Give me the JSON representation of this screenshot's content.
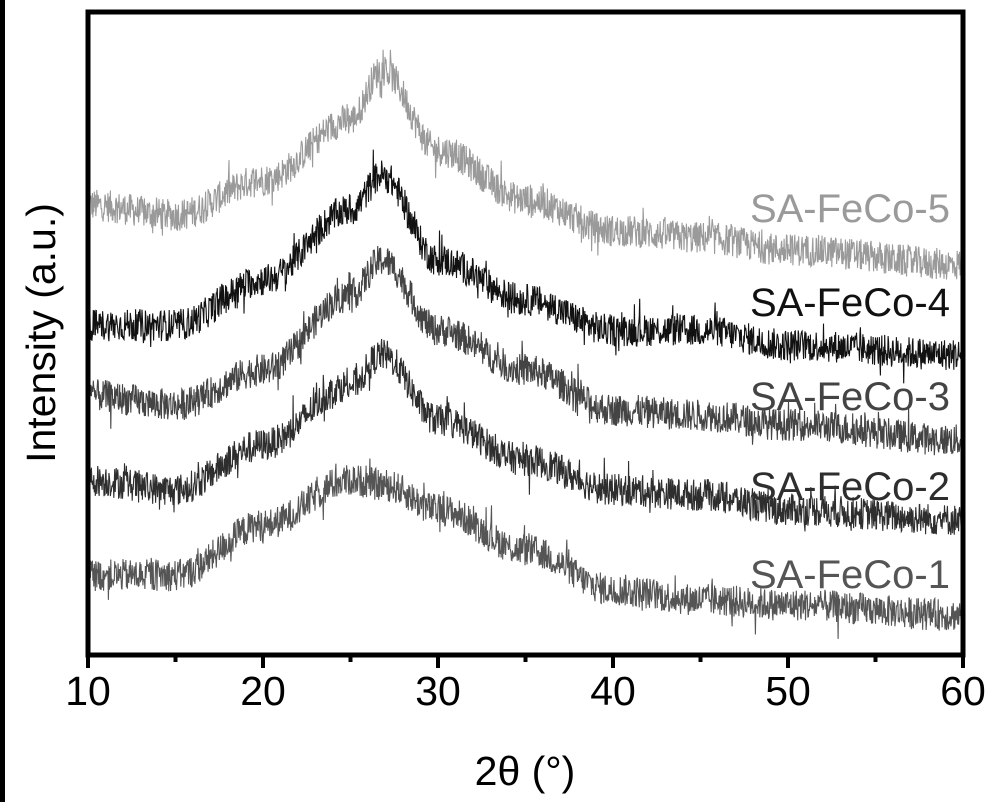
{
  "chart_data": {
    "type": "line",
    "title": "",
    "xlabel": "2θ (°)",
    "ylabel": "Intensity (a.u.)",
    "xlim": [
      10,
      60
    ],
    "ylim": [
      0,
      100
    ],
    "xticks": [
      10,
      20,
      30,
      40,
      50,
      60
    ],
    "xticks_minor": [
      15,
      25,
      35,
      45,
      55
    ],
    "grid": false,
    "legend": "inline-right",
    "noise": "high-frequency noise on all series, ~±3 a.u.",
    "series": [
      {
        "name": "SA-FeCo-5",
        "color": "#9a9a9a",
        "x": [
          10,
          15,
          20,
          25,
          26.8,
          30,
          35,
          40,
          45,
          50,
          60
        ],
        "y": [
          70,
          68.4,
          73.9,
          83.2,
          91,
          78.5,
          70.8,
          66,
          64.9,
          63,
          60.7
        ]
      },
      {
        "name": "SA-FeCo-4",
        "color": "#111111",
        "x": [
          10,
          15,
          20,
          25,
          26.8,
          30,
          35,
          40,
          45,
          50,
          60
        ],
        "y": [
          51.3,
          51.3,
          58.3,
          69.2,
          74.6,
          61.4,
          55.2,
          50.5,
          50.5,
          48.2,
          46.7
        ]
      },
      {
        "name": "SA-FeCo-3",
        "color": "#444444",
        "x": [
          10,
          15,
          20,
          25,
          26.8,
          30,
          35,
          40,
          45,
          50,
          60
        ],
        "y": [
          40.4,
          38.9,
          44.3,
          56,
          61.4,
          50.5,
          44.3,
          38.1,
          37.3,
          35.8,
          33.4
        ]
      },
      {
        "name": "SA-FeCo-2",
        "color": "#2e2e2e",
        "x": [
          10,
          15,
          20,
          25,
          26.8,
          30,
          35,
          40,
          45,
          50,
          60
        ],
        "y": [
          27.2,
          25.7,
          32.7,
          42,
          46.7,
          36.5,
          30.3,
          25.7,
          24.9,
          22.6,
          21
        ]
      },
      {
        "name": "SA-FeCo-1",
        "color": "#555555",
        "x": [
          10,
          15,
          20,
          25,
          27,
          30,
          35,
          40,
          45,
          50,
          60
        ],
        "y": [
          12.4,
          12.4,
          20.2,
          27.2,
          26.4,
          22.6,
          16.3,
          10.1,
          8.6,
          7.8,
          6.2
        ]
      }
    ]
  }
}
